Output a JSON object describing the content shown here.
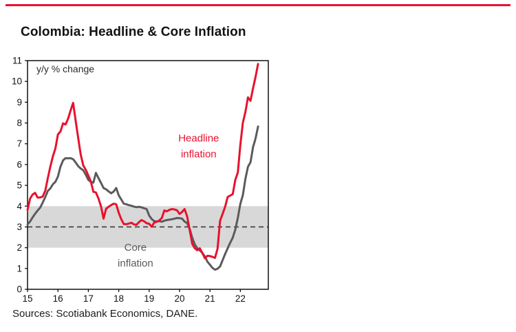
{
  "page": {
    "title": "Colombia: Headline & Core Inflation",
    "source_note": "Sources: Scotiabank Economics, DANE.",
    "accent_color": "#e8112d"
  },
  "chart_data": {
    "type": "line",
    "title": "Colombia: Headline & Core Inflation",
    "unit_label": "y/y % change",
    "grid": false,
    "legend_position": "none",
    "ylim": [
      0,
      11
    ],
    "ytick_step": 1,
    "xlim": [
      2015.0,
      2022.92
    ],
    "x_start": {
      "year": 2015,
      "month": 1
    },
    "x_frequency": "monthly",
    "xticks": [
      {
        "label": "15",
        "value": 2015
      },
      {
        "label": "16",
        "value": 2016
      },
      {
        "label": "17",
        "value": 2017
      },
      {
        "label": "18",
        "value": 2018
      },
      {
        "label": "19",
        "value": 2019
      },
      {
        "label": "20",
        "value": 2020
      },
      {
        "label": "21",
        "value": 2021
      },
      {
        "label": "22",
        "value": 2022
      }
    ],
    "target_band": {
      "from": 2,
      "to": 4,
      "color": "#d8d8d8"
    },
    "target_line": {
      "value": 3,
      "style": "dashed",
      "color": "#3a3a3a"
    },
    "series": [
      {
        "name": "Headline inflation",
        "color": "#e8112d",
        "values": [
          3.82,
          4.36,
          4.56,
          4.64,
          4.41,
          4.42,
          4.46,
          4.74,
          5.35,
          5.89,
          6.39,
          6.77,
          7.45,
          7.59,
          7.98,
          7.93,
          8.2,
          8.6,
          8.97,
          8.1,
          7.27,
          6.48,
          5.96,
          5.75,
          5.47,
          5.18,
          4.69,
          4.66,
          4.37,
          3.99,
          3.4,
          3.87,
          3.97,
          4.05,
          4.12,
          4.09,
          3.68,
          3.37,
          3.14,
          3.13,
          3.16,
          3.2,
          3.12,
          3.1,
          3.23,
          3.33,
          3.27,
          3.18,
          3.15,
          3.01,
          3.21,
          3.25,
          3.31,
          3.43,
          3.79,
          3.75,
          3.82,
          3.86,
          3.84,
          3.8,
          3.62,
          3.72,
          3.86,
          3.51,
          2.85,
          2.19,
          1.97,
          1.88,
          1.97,
          1.75,
          1.49,
          1.61,
          1.6,
          1.56,
          1.51,
          1.95,
          3.3,
          3.63,
          3.97,
          4.44,
          4.51,
          4.58,
          5.26,
          5.62,
          6.94,
          8.01,
          8.53,
          9.23,
          9.07,
          9.67,
          10.21,
          10.84
        ]
      },
      {
        "name": "Core inflation",
        "color": "#5a5a5c",
        "values": [
          3.12,
          3.26,
          3.46,
          3.63,
          3.79,
          3.93,
          4.17,
          4.44,
          4.73,
          4.85,
          5.05,
          5.17,
          5.42,
          5.9,
          6.2,
          6.31,
          6.3,
          6.31,
          6.26,
          6.1,
          5.92,
          5.81,
          5.73,
          5.51,
          5.26,
          5.17,
          5.13,
          5.6,
          5.35,
          5.12,
          4.87,
          4.81,
          4.71,
          4.62,
          4.7,
          4.87,
          4.52,
          4.32,
          4.12,
          4.09,
          4.05,
          4.02,
          3.98,
          3.95,
          3.97,
          3.94,
          3.9,
          3.86,
          3.55,
          3.38,
          3.28,
          3.26,
          3.28,
          3.25,
          3.3,
          3.33,
          3.35,
          3.37,
          3.4,
          3.43,
          3.42,
          3.4,
          3.26,
          3.18,
          2.91,
          2.48,
          2.16,
          1.98,
          1.87,
          1.75,
          1.58,
          1.33,
          1.18,
          1.03,
          0.94,
          0.99,
          1.1,
          1.4,
          1.7,
          1.97,
          2.24,
          2.48,
          2.87,
          3.44,
          4.11,
          4.53,
          5.31,
          5.89,
          6.11,
          6.84,
          7.25,
          7.83
        ]
      }
    ],
    "annotations": [
      {
        "text_lines": [
          "Headline",
          "inflation"
        ],
        "color": "#e8112d",
        "x": 2020.63,
        "y": 7.1
      },
      {
        "text_lines": [
          "Core",
          "inflation"
        ],
        "color": "#5a5a5c",
        "x": 2018.55,
        "y": 1.85
      }
    ]
  }
}
